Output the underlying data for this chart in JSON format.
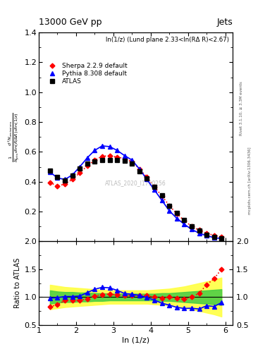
{
  "title_top": "13000 GeV pp",
  "title_right": "Jets",
  "subplot_title": "ln(1/z) (Lund plane 2.33<ln(RΔ R)<2.67)",
  "watermark": "ATLAS_2020_I1790256",
  "ylabel_main": "$\\frac{1}{N_{\\mathrm{jets}}}\\frac{d^2 N_{\\mathrm{emissions}}}{d\\ln(R/\\Delta R)\\,d\\ln(1/z)}$",
  "ylabel_ratio": "Ratio to ATLAS",
  "xlabel": "ln (1/z)",
  "right_label_top": "Rivet 3.1.10, ≥ 3.3M events",
  "right_label_bot": "mcplots.cern.ch [arXiv:1306.3436]",
  "atlas_x": [
    1.3,
    1.5,
    1.7,
    1.9,
    2.1,
    2.3,
    2.5,
    2.7,
    2.9,
    3.1,
    3.3,
    3.5,
    3.7,
    3.9,
    4.1,
    4.3,
    4.5,
    4.7,
    4.9,
    5.1,
    5.3,
    5.5,
    5.7,
    5.9
  ],
  "atlas_y": [
    0.475,
    0.43,
    0.41,
    0.44,
    0.49,
    0.52,
    0.535,
    0.545,
    0.545,
    0.545,
    0.54,
    0.52,
    0.47,
    0.42,
    0.365,
    0.31,
    0.24,
    0.19,
    0.145,
    0.1,
    0.07,
    0.045,
    0.03,
    0.02
  ],
  "atlas_color": "#000000",
  "pythia_x": [
    1.3,
    1.5,
    1.7,
    1.9,
    2.1,
    2.3,
    2.5,
    2.7,
    2.9,
    3.1,
    3.3,
    3.5,
    3.7,
    3.9,
    4.1,
    4.3,
    4.5,
    4.7,
    4.9,
    5.1,
    5.3,
    5.5,
    5.7,
    5.9
  ],
  "pythia_y": [
    0.465,
    0.425,
    0.415,
    0.445,
    0.5,
    0.56,
    0.61,
    0.64,
    0.635,
    0.61,
    0.575,
    0.545,
    0.485,
    0.415,
    0.345,
    0.275,
    0.205,
    0.155,
    0.115,
    0.08,
    0.055,
    0.038,
    0.025,
    0.018
  ],
  "pythia_color": "#0000ff",
  "sherpa_x": [
    1.3,
    1.5,
    1.7,
    1.9,
    2.1,
    2.3,
    2.5,
    2.7,
    2.9,
    3.1,
    3.3,
    3.5,
    3.7,
    3.9,
    4.1,
    4.3,
    4.5,
    4.7,
    4.9,
    5.1,
    5.3,
    5.5,
    5.7,
    5.9
  ],
  "sherpa_y": [
    0.395,
    0.37,
    0.385,
    0.415,
    0.46,
    0.505,
    0.545,
    0.57,
    0.575,
    0.565,
    0.555,
    0.535,
    0.485,
    0.43,
    0.365,
    0.305,
    0.24,
    0.185,
    0.14,
    0.1,
    0.075,
    0.055,
    0.04,
    0.03
  ],
  "sherpa_color": "#ff0000",
  "ratio_pythia_y": [
    0.98,
    0.99,
    1.01,
    1.01,
    1.02,
    1.08,
    1.14,
    1.175,
    1.165,
    1.12,
    1.065,
    1.05,
    1.03,
    0.99,
    0.945,
    0.89,
    0.855,
    0.815,
    0.795,
    0.8,
    0.785,
    0.845,
    0.83,
    0.9
  ],
  "ratio_sherpa_y": [
    0.83,
    0.86,
    0.94,
    0.94,
    0.94,
    0.97,
    1.02,
    1.045,
    1.055,
    1.037,
    1.028,
    1.03,
    1.032,
    1.024,
    1.0,
    0.984,
    1.0,
    0.974,
    0.966,
    1.0,
    1.07,
    1.22,
    1.33,
    1.5
  ],
  "band_green_upper": [
    1.12,
    1.1,
    1.09,
    1.09,
    1.08,
    1.08,
    1.07,
    1.07,
    1.06,
    1.06,
    1.06,
    1.06,
    1.06,
    1.06,
    1.06,
    1.07,
    1.07,
    1.08,
    1.09,
    1.1,
    1.11,
    1.12,
    1.13,
    1.14
  ],
  "band_green_lower": [
    0.88,
    0.9,
    0.91,
    0.91,
    0.92,
    0.92,
    0.93,
    0.93,
    0.94,
    0.94,
    0.94,
    0.94,
    0.94,
    0.94,
    0.94,
    0.93,
    0.93,
    0.92,
    0.91,
    0.9,
    0.89,
    0.88,
    0.87,
    0.86
  ],
  "band_yellow_upper": [
    1.22,
    1.2,
    1.18,
    1.17,
    1.16,
    1.15,
    1.14,
    1.13,
    1.12,
    1.12,
    1.12,
    1.12,
    1.12,
    1.12,
    1.13,
    1.14,
    1.15,
    1.17,
    1.19,
    1.22,
    1.25,
    1.28,
    1.31,
    1.35
  ],
  "band_yellow_lower": [
    0.78,
    0.8,
    0.82,
    0.83,
    0.84,
    0.85,
    0.86,
    0.87,
    0.88,
    0.88,
    0.88,
    0.88,
    0.88,
    0.88,
    0.87,
    0.86,
    0.85,
    0.83,
    0.81,
    0.78,
    0.75,
    0.72,
    0.69,
    0.65
  ],
  "xlim": [
    1.0,
    6.2
  ],
  "ylim_main": [
    0.0,
    1.4
  ],
  "ylim_ratio": [
    0.5,
    2.0
  ],
  "yticks_main": [
    0.2,
    0.4,
    0.6,
    0.8,
    1.0,
    1.2,
    1.4
  ],
  "yticks_ratio": [
    0.5,
    1.0,
    1.5,
    2.0
  ],
  "xticks": [
    1,
    2,
    3,
    4,
    5,
    6
  ]
}
